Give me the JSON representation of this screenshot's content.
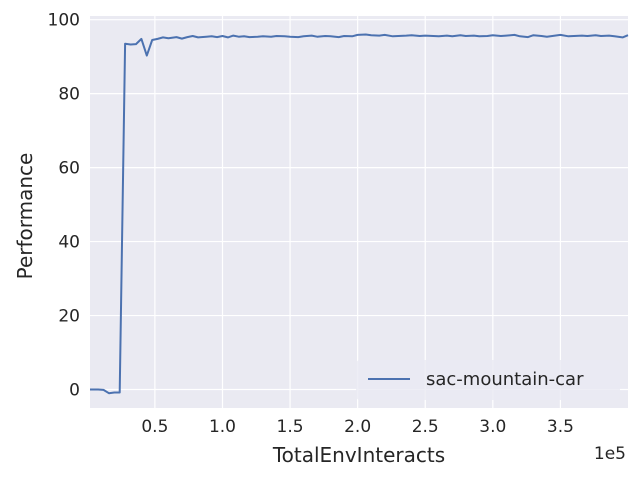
{
  "chart_data": {
    "type": "line",
    "title": "",
    "xlabel": "TotalEnvInteracts",
    "ylabel": "Performance",
    "x_offset_label": "1e5",
    "x_scale": 100000,
    "xlim": [
      2000,
      400000
    ],
    "ylim": [
      -5,
      101
    ],
    "xticks": [
      0.5,
      1.0,
      1.5,
      2.0,
      2.5,
      3.0,
      3.5
    ],
    "xtick_labels": [
      "0.5",
      "1.0",
      "1.5",
      "2.0",
      "2.5",
      "3.0",
      "3.5"
    ],
    "yticks": [
      0,
      20,
      40,
      60,
      80,
      100
    ],
    "ytick_labels": [
      "0",
      "20",
      "40",
      "60",
      "80",
      "100"
    ],
    "grid": true,
    "legend_position": "lower-right",
    "colors": {
      "background": "#eaeaf2",
      "grid": "#ffffff",
      "series": "#4c72b0"
    },
    "series": [
      {
        "name": "sac-mountain-car",
        "x": [
          2000,
          8000,
          12000,
          16000,
          20000,
          24000,
          28000,
          32000,
          36000,
          40000,
          44000,
          48000,
          52000,
          56000,
          60000,
          66000,
          70000,
          74000,
          78000,
          82000,
          88000,
          92000,
          96000,
          100000,
          104000,
          108000,
          112000,
          116000,
          120000,
          126000,
          130000,
          136000,
          140000,
          146000,
          150000,
          156000,
          160000,
          166000,
          170000,
          176000,
          180000,
          186000,
          190000,
          196000,
          200000,
          206000,
          210000,
          216000,
          220000,
          226000,
          230000,
          236000,
          240000,
          246000,
          250000,
          256000,
          260000,
          266000,
          270000,
          276000,
          280000,
          286000,
          290000,
          296000,
          300000,
          306000,
          310000,
          316000,
          320000,
          326000,
          330000,
          336000,
          340000,
          346000,
          350000,
          356000,
          360000,
          366000,
          370000,
          376000,
          380000,
          386000,
          390000,
          396000,
          400000
        ],
        "y": [
          0.0,
          0.0,
          -0.1,
          -1.0,
          -0.8,
          -0.8,
          93.5,
          93.3,
          93.4,
          94.8,
          90.3,
          94.5,
          94.8,
          95.2,
          95.0,
          95.3,
          94.9,
          95.3,
          95.6,
          95.2,
          95.4,
          95.5,
          95.3,
          95.6,
          95.2,
          95.7,
          95.4,
          95.5,
          95.3,
          95.4,
          95.5,
          95.4,
          95.6,
          95.5,
          95.4,
          95.3,
          95.5,
          95.7,
          95.4,
          95.6,
          95.5,
          95.3,
          95.6,
          95.5,
          95.9,
          96.0,
          95.8,
          95.7,
          95.9,
          95.5,
          95.6,
          95.7,
          95.8,
          95.6,
          95.7,
          95.6,
          95.5,
          95.7,
          95.5,
          95.8,
          95.6,
          95.7,
          95.5,
          95.6,
          95.8,
          95.6,
          95.7,
          95.9,
          95.5,
          95.3,
          95.8,
          95.6,
          95.4,
          95.7,
          95.9,
          95.5,
          95.6,
          95.7,
          95.6,
          95.8,
          95.6,
          95.7,
          95.5,
          95.2,
          95.8
        ]
      }
    ]
  }
}
